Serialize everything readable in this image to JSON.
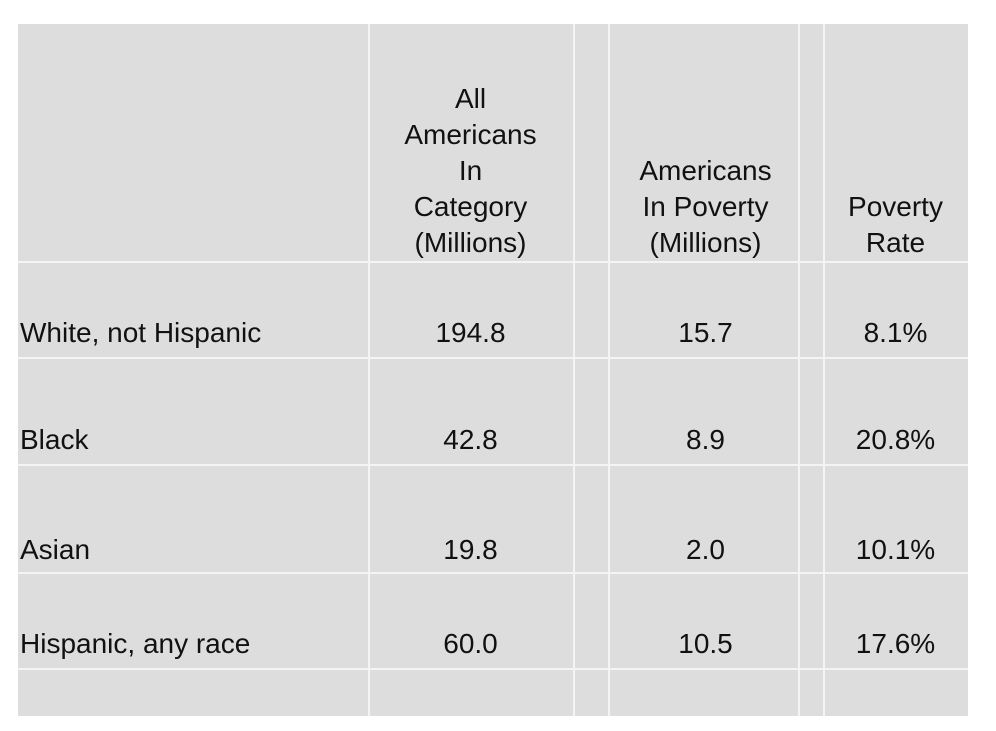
{
  "chart_data": {
    "type": "table",
    "columns": [
      "",
      "All Americans In Category (Millions)",
      "Americans In Poverty (Millions)",
      "Poverty Rate"
    ],
    "header_lines": {
      "all_americans": [
        "All",
        "Americans",
        "In",
        "Category",
        "(Millions)"
      ],
      "in_poverty": [
        "Americans",
        "In Poverty",
        "(Millions)"
      ],
      "poverty_rate": [
        "Poverty",
        "Rate"
      ]
    },
    "rows": [
      {
        "category": "White, not Hispanic",
        "all_americans": "194.8",
        "in_poverty": "15.7",
        "poverty_rate": "8.1%"
      },
      {
        "category": "Black",
        "all_americans": "42.8",
        "in_poverty": "8.9",
        "poverty_rate": "20.8%"
      },
      {
        "category": "Asian",
        "all_americans": "19.8",
        "in_poverty": "2.0",
        "poverty_rate": "10.1%"
      },
      {
        "category": "Hispanic, any race",
        "all_americans": "60.0",
        "in_poverty": "10.5",
        "poverty_rate": "17.6%"
      }
    ],
    "numeric": {
      "all_americans_millions": [
        194.8,
        42.8,
        19.8,
        60.0
      ],
      "in_poverty_millions": [
        15.7,
        8.9,
        2.0,
        10.5
      ],
      "poverty_rate_percent": [
        8.1,
        20.8,
        10.1,
        17.6
      ]
    }
  },
  "colors": {
    "table_background": "#dddddd",
    "gridline": "#f4f4f4",
    "text": "#111111"
  }
}
